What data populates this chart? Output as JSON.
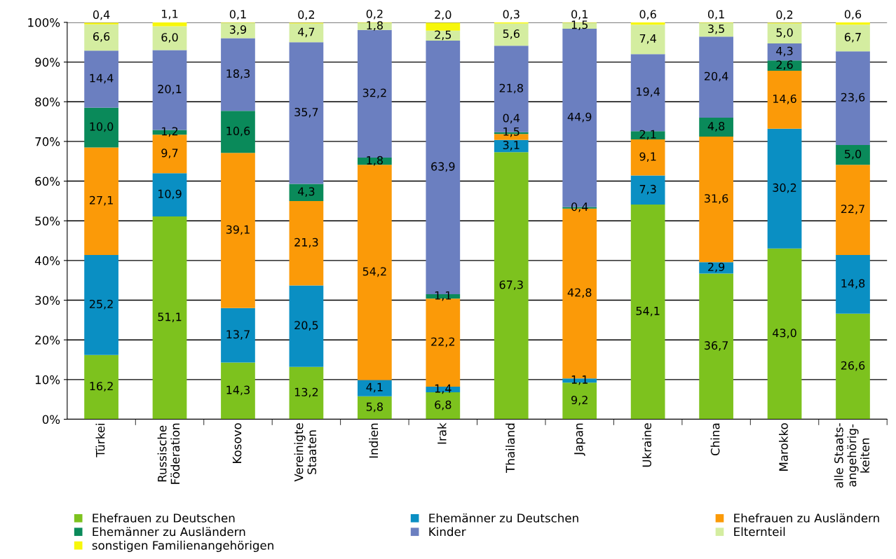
{
  "chart_data": {
    "type": "bar",
    "stacked": true,
    "legend": "bottom",
    "grid": "y",
    "categories": [
      "Türkei",
      "Russische\nFöderation",
      "Kosovo",
      "Vereinigte\nStaaten",
      "Indien",
      "Irak",
      "Thailand",
      "Japan",
      "Ukraine",
      "China",
      "Marokko",
      "alle Staats-\nangehörig-\nkeiten"
    ],
    "ylim": [
      0,
      100
    ],
    "yticks": [
      {
        "value": 0,
        "label": "0%"
      },
      {
        "value": 10,
        "label": "10%"
      },
      {
        "value": 20,
        "label": "20%"
      },
      {
        "value": 30,
        "label": "30%"
      },
      {
        "value": 40,
        "label": "40%"
      },
      {
        "value": 50,
        "label": "50%"
      },
      {
        "value": 60,
        "label": "60%"
      },
      {
        "value": 70,
        "label": "70%"
      },
      {
        "value": 80,
        "label": "80%"
      },
      {
        "value": 90,
        "label": "90%"
      },
      {
        "value": 100,
        "label": "100%"
      }
    ],
    "series": [
      {
        "name": "Ehefrauen zu Deutschen",
        "color": "#7dc21e",
        "values": [
          16.2,
          51.1,
          14.3,
          13.2,
          5.8,
          6.8,
          67.3,
          9.2,
          54.1,
          36.7,
          43.0,
          26.6
        ],
        "value_labels": [
          "16,2",
          "51,1",
          "14,3",
          "13,2",
          "5,8",
          "6,8",
          "67,3",
          "9,2",
          "54,1",
          "36,7",
          "43,0",
          "26,6"
        ]
      },
      {
        "name": "Ehemänner zu Deutschen",
        "color": "#0a8fc3",
        "values": [
          25.2,
          10.9,
          13.7,
          20.5,
          4.1,
          1.4,
          3.1,
          1.1,
          7.3,
          2.9,
          30.2,
          14.8
        ],
        "value_labels": [
          "25,2",
          "10,9",
          "13,7",
          "20,5",
          "4,1",
          "1,4",
          "3,1",
          "1,1",
          "7,3",
          "2,9",
          "30,2",
          "14,8"
        ]
      },
      {
        "name": "Ehefrauen zu Ausländern",
        "color": "#fb9a08",
        "values": [
          27.1,
          9.7,
          39.1,
          21.3,
          54.2,
          22.2,
          1.5,
          42.8,
          9.1,
          31.6,
          14.6,
          22.7
        ],
        "value_labels": [
          "27,1",
          "9,7",
          "39,1",
          "21,3",
          "54,2",
          "22,2",
          "1,5",
          "42,8",
          "9,1",
          "31,6",
          "14,6",
          "22,7"
        ]
      },
      {
        "name": "Ehemänner zu Ausländern",
        "color": "#0a8a5a",
        "values": [
          10.0,
          1.2,
          10.6,
          4.3,
          1.8,
          1.1,
          0.4,
          0.4,
          2.1,
          4.8,
          2.6,
          5.0
        ],
        "value_labels": [
          "10,0",
          "1,2",
          "10,6",
          "4,3",
          "1,8",
          "1,1",
          "0,4",
          "0,4",
          "2,1",
          "4,8",
          "2,6",
          "5,0"
        ]
      },
      {
        "name": "Kinder",
        "color": "#6b7fc0",
        "values": [
          14.4,
          20.1,
          18.3,
          35.7,
          32.2,
          63.9,
          21.8,
          44.9,
          19.4,
          20.4,
          4.3,
          23.6
        ],
        "value_labels": [
          "14,4",
          "20,1",
          "18,3",
          "35,7",
          "32,2",
          "63,9",
          "21,8",
          "44,9",
          "19,4",
          "20,4",
          "4,3",
          "23,6"
        ]
      },
      {
        "name": "Elternteil",
        "color": "#d4eda0",
        "values": [
          6.6,
          6.0,
          3.9,
          4.7,
          1.8,
          2.5,
          5.6,
          1.5,
          7.4,
          3.5,
          5.0,
          6.7
        ],
        "value_labels": [
          "6,6",
          "6,0",
          "3,9",
          "4,7",
          "1,8",
          "2,5",
          "5,6",
          "1,5",
          "7,4",
          "3,5",
          "5,0",
          "6,7"
        ]
      },
      {
        "name": "sonstigen Familienangehörigen",
        "color": "#f7f70a",
        "values": [
          0.4,
          1.1,
          0.1,
          0.2,
          0.2,
          2.0,
          0.3,
          0.1,
          0.6,
          0.1,
          0.2,
          0.6
        ],
        "value_labels": [
          "0,4",
          "1,1",
          "0,1",
          "0,2",
          "0,2",
          "2,0",
          "0,3",
          "0,1",
          "0,6",
          "0,1",
          "0,2",
          "0,6"
        ]
      }
    ]
  }
}
